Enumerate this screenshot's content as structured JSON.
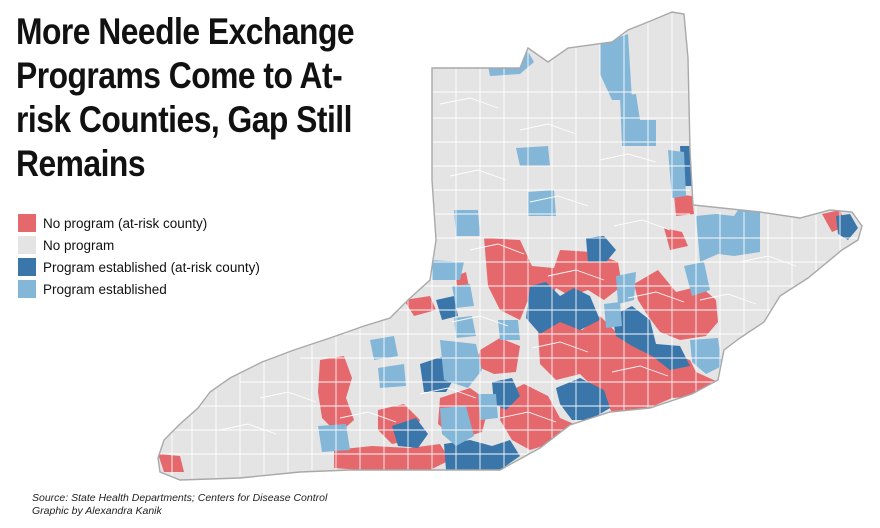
{
  "title": "More Needle Exchange Programs Come to At-risk Counties, Gap Still Remains",
  "legend": [
    {
      "label": "No program (at-risk county)",
      "color": "#e5686d"
    },
    {
      "label": "No program",
      "color": "#e4e4e4"
    },
    {
      "label": "Program established (at-risk county)",
      "color": "#3a76aa"
    },
    {
      "label": "Program established",
      "color": "#84b6d8"
    }
  ],
  "colors": {
    "border": "#a9a9a9",
    "county_line": "#ffffff"
  },
  "source": "Source: State Health Departments; Centers for Disease Control",
  "credit": "Graphic by Alexandra Kanik"
}
